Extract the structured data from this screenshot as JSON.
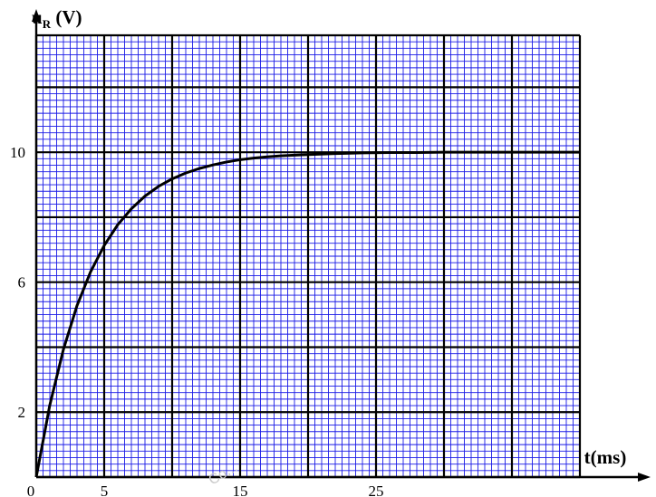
{
  "chart_data": {
    "type": "line",
    "title": "",
    "ylabel": "uR (V)",
    "ylabel_main": "u",
    "ylabel_sub": "R",
    "ylabel_unit": " (V)",
    "xlabel": "t(ms)",
    "xlim": [
      0,
      40
    ],
    "ylim": [
      0,
      13.6
    ],
    "grid": true,
    "grid_color": "#1a1ae6",
    "major_grid_color": "#000000",
    "curve_color": "#000000",
    "x_tick_labels": [
      {
        "value": 0,
        "text": "0"
      },
      {
        "value": 5,
        "text": "5"
      },
      {
        "value": 15,
        "text": "15"
      },
      {
        "value": 25,
        "text": "25"
      }
    ],
    "y_tick_labels": [
      {
        "value": 2,
        "text": "2"
      },
      {
        "value": 6,
        "text": "6"
      },
      {
        "value": 10,
        "text": "10"
      }
    ],
    "series": [
      {
        "x": [
          0,
          1,
          2,
          3,
          4,
          5,
          6,
          7,
          8,
          9,
          10,
          11,
          12,
          13,
          14,
          15,
          16,
          17,
          18,
          19,
          20,
          22,
          24,
          26,
          28,
          30,
          32,
          34,
          36,
          38,
          40
        ],
        "values": [
          0,
          2.22,
          3.93,
          5.28,
          6.32,
          7.13,
          7.77,
          8.26,
          8.65,
          8.95,
          9.18,
          9.36,
          9.5,
          9.61,
          9.7,
          9.77,
          9.82,
          9.86,
          9.89,
          9.91,
          9.93,
          9.96,
          9.98,
          9.99,
          9.99,
          10.0,
          10.0,
          10.0,
          10.0,
          10.0,
          10.0
        ]
      }
    ]
  },
  "watermark": "Co..."
}
